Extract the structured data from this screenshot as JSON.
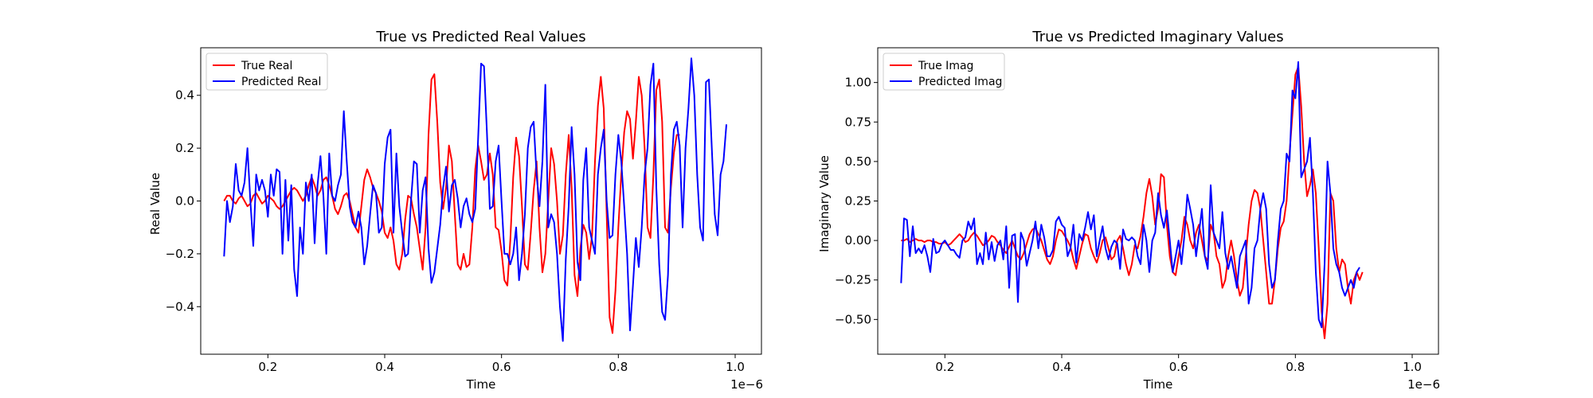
{
  "chart_data": [
    {
      "type": "line",
      "title": "True vs Predicted Real Values",
      "xlabel": "Time",
      "ylabel": "Real Value",
      "x_offset_label": "1e−6",
      "xlim": [
        0.085,
        1.045
      ],
      "ylim": [
        -0.58,
        0.58
      ],
      "xticks": [
        0.2,
        0.4,
        0.6,
        0.8,
        1.0
      ],
      "xtick_labels": [
        "0.2",
        "0.4",
        "0.6",
        "0.8",
        "1.0"
      ],
      "yticks": [
        -0.4,
        -0.2,
        0.0,
        0.2,
        0.4
      ],
      "ytick_labels": [
        "−0.4",
        "−0.2",
        "0.0",
        "0.2",
        "0.4"
      ],
      "grid": false,
      "legend_position": "upper-left",
      "x_start": 0.125,
      "x_step": 0.005,
      "series": [
        {
          "name": "True Real",
          "color": "#ff0000",
          "values": [
            0.0,
            0.02,
            0.02,
            0.0,
            -0.01,
            0.01,
            0.02,
            0.0,
            -0.02,
            -0.01,
            0.02,
            0.03,
            0.01,
            -0.01,
            0.0,
            0.02,
            0.01,
            0.0,
            -0.02,
            -0.03,
            -0.02,
            0.0,
            0.02,
            0.04,
            0.05,
            0.04,
            0.02,
            0.0,
            0.02,
            0.06,
            0.09,
            0.06,
            0.02,
            0.04,
            0.08,
            0.09,
            0.06,
            0.02,
            -0.03,
            -0.05,
            -0.02,
            0.02,
            0.03,
            0.0,
            -0.05,
            -0.1,
            -0.12,
            -0.02,
            0.08,
            0.12,
            0.09,
            0.05,
            0.03,
            0.0,
            -0.04,
            -0.12,
            -0.14,
            -0.1,
            -0.15,
            -0.24,
            -0.26,
            -0.2,
            -0.07,
            0.02,
            0.01,
            -0.05,
            -0.1,
            -0.18,
            -0.26,
            -0.1,
            0.25,
            0.46,
            0.48,
            0.3,
            0.07,
            -0.03,
            0.05,
            0.21,
            0.15,
            -0.05,
            -0.24,
            -0.26,
            -0.2,
            -0.25,
            -0.24,
            -0.1,
            0.12,
            0.21,
            0.15,
            0.08,
            0.1,
            0.18,
            0.1,
            -0.1,
            -0.11,
            -0.19,
            -0.3,
            -0.32,
            -0.15,
            0.09,
            0.24,
            0.17,
            -0.02,
            -0.24,
            -0.26,
            -0.12,
            0.04,
            0.15,
            -0.1,
            -0.27,
            -0.2,
            0.0,
            0.2,
            0.14,
            0.0,
            -0.2,
            -0.13,
            0.1,
            0.25,
            0.05,
            -0.28,
            -0.36,
            -0.18,
            -0.09,
            -0.12,
            -0.22,
            -0.13,
            0.15,
            0.36,
            0.47,
            0.35,
            -0.05,
            -0.44,
            -0.5,
            -0.34,
            -0.1,
            0.1,
            0.26,
            0.34,
            0.31,
            0.16,
            0.3,
            0.47,
            0.4,
            0.2,
            -0.1,
            -0.14,
            0.1,
            0.42,
            0.46,
            0.3,
            -0.1,
            -0.12,
            0.05,
            0.18,
            0.25,
            0.25
          ]
        },
        {
          "name": "Predicted Real",
          "color": "#0000ff",
          "values": [
            -0.21,
            0.0,
            -0.08,
            -0.02,
            0.14,
            0.04,
            0.02,
            0.07,
            0.2,
            0.0,
            -0.17,
            0.1,
            0.04,
            0.08,
            0.04,
            -0.06,
            0.1,
            0.02,
            0.12,
            0.11,
            -0.2,
            0.08,
            -0.15,
            0.06,
            -0.26,
            -0.36,
            -0.1,
            -0.2,
            0.07,
            0.0,
            0.1,
            -0.16,
            0.06,
            0.17,
            0.02,
            -0.2,
            0.18,
            0.02,
            0.0,
            0.06,
            0.1,
            0.34,
            0.15,
            -0.02,
            -0.08,
            -0.1,
            -0.04,
            -0.1,
            -0.24,
            -0.17,
            -0.05,
            0.06,
            0.03,
            -0.12,
            -0.1,
            0.14,
            0.24,
            0.27,
            -0.12,
            0.18,
            -0.02,
            -0.12,
            -0.21,
            -0.2,
            0.0,
            0.15,
            0.14,
            -0.12,
            0.04,
            0.09,
            -0.18,
            -0.31,
            -0.27,
            -0.18,
            -0.09,
            0.05,
            0.13,
            -0.04,
            0.06,
            0.08,
            0.01,
            -0.1,
            -0.02,
            0.01,
            -0.05,
            -0.08,
            -0.03,
            0.24,
            0.52,
            0.51,
            0.26,
            -0.03,
            -0.02,
            0.15,
            0.21,
            0.0,
            -0.2,
            -0.2,
            -0.24,
            -0.2,
            -0.1,
            -0.3,
            -0.2,
            -0.05,
            0.2,
            0.28,
            0.3,
            0.1,
            -0.02,
            0.15,
            0.44,
            -0.1,
            -0.05,
            -0.08,
            -0.2,
            -0.4,
            -0.53,
            -0.22,
            -0.02,
            0.28,
            0.1,
            -0.23,
            -0.3,
            0.08,
            0.2,
            -0.1,
            -0.15,
            -0.2,
            0.1,
            0.2,
            0.27,
            0.0,
            -0.14,
            -0.13,
            0.1,
            0.25,
            0.15,
            -0.02,
            -0.2,
            -0.49,
            -0.32,
            -0.14,
            -0.25,
            -0.1,
            0.1,
            0.2,
            0.44,
            0.52,
            0.05,
            -0.24,
            -0.42,
            -0.45,
            -0.28,
            0.1,
            0.27,
            0.3,
            0.21,
            -0.1,
            0.2,
            0.35,
            0.54,
            0.4,
            0.1,
            -0.1,
            -0.15,
            0.45,
            0.46,
            0.2,
            -0.05,
            -0.13,
            0.1,
            0.15,
            0.29
          ]
        }
      ]
    },
    {
      "type": "line",
      "title": "True vs Predicted Imaginary Values",
      "xlabel": "Time",
      "ylabel": "Imaginary Value",
      "x_offset_label": "1e−6",
      "xlim": [
        0.085,
        1.045
      ],
      "ylim": [
        -0.72,
        1.22
      ],
      "xticks": [
        0.2,
        0.4,
        0.6,
        0.8,
        1.0
      ],
      "xtick_labels": [
        "0.2",
        "0.4",
        "0.6",
        "0.8",
        "1.0"
      ],
      "yticks": [
        -0.5,
        -0.25,
        0.0,
        0.25,
        0.5,
        0.75,
        1.0
      ],
      "ytick_labels": [
        "−0.50",
        "−0.25",
        "0.00",
        "0.25",
        "0.50",
        "0.75",
        "1.00"
      ],
      "grid": false,
      "legend_position": "upper-left",
      "x_start": 0.125,
      "x_step": 0.005,
      "series": [
        {
          "name": "True Imag",
          "color": "#ff0000",
          "values": [
            0.0,
            0.0,
            0.01,
            -0.01,
            0.0,
            0.01,
            0.0,
            0.0,
            -0.01,
            0.0,
            0.0,
            -0.01,
            -0.01,
            -0.02,
            -0.02,
            -0.01,
            -0.03,
            -0.02,
            0.0,
            0.02,
            0.04,
            0.02,
            -0.01,
            0.0,
            0.03,
            0.05,
            0.03,
            0.0,
            -0.03,
            -0.02,
            0.0,
            0.03,
            0.02,
            -0.01,
            -0.03,
            -0.06,
            -0.08,
            -0.04,
            0.0,
            -0.05,
            -0.1,
            -0.12,
            -0.08,
            -0.02,
            0.04,
            0.07,
            0.08,
            0.04,
            0.0,
            -0.06,
            -0.12,
            -0.15,
            -0.1,
            0.0,
            0.07,
            0.06,
            0.03,
            0.0,
            -0.04,
            -0.12,
            -0.18,
            -0.1,
            -0.02,
            0.04,
            0.03,
            -0.05,
            -0.1,
            -0.14,
            -0.08,
            0.0,
            0.02,
            -0.05,
            -0.12,
            -0.1,
            0.0,
            0.03,
            -0.05,
            -0.15,
            -0.22,
            -0.15,
            -0.03,
            -0.05,
            0.03,
            0.15,
            0.3,
            0.39,
            0.28,
            0.1,
            0.2,
            0.42,
            0.4,
            0.1,
            -0.1,
            -0.2,
            -0.22,
            -0.1,
            0.0,
            0.15,
            0.1,
            0.0,
            -0.05,
            0.05,
            0.1,
            0.0,
            -0.1,
            -0.13,
            0.1,
            0.05,
            -0.1,
            -0.15,
            -0.3,
            -0.25,
            -0.1,
            0.0,
            -0.1,
            -0.25,
            -0.35,
            -0.3,
            -0.1,
            0.1,
            0.25,
            0.32,
            0.3,
            0.2,
            0.0,
            -0.2,
            -0.4,
            -0.4,
            -0.25,
            -0.05,
            0.08,
            0.12,
            0.25,
            0.55,
            0.8,
            1.05,
            1.1,
            0.85,
            0.5,
            0.28,
            0.35,
            0.45,
            0.3,
            -0.05,
            -0.45,
            -0.62,
            -0.4,
            0.3,
            0.25,
            -0.05,
            -0.2,
            -0.12,
            -0.15,
            -0.3,
            -0.4,
            -0.25,
            -0.2,
            -0.25,
            -0.2
          ]
        },
        {
          "name": "Predicted Imag",
          "color": "#0000ff",
          "values": [
            -0.27,
            0.14,
            0.13,
            -0.1,
            0.09,
            -0.08,
            -0.05,
            -0.08,
            -0.03,
            -0.1,
            -0.2,
            0.01,
            -0.08,
            -0.07,
            -0.02,
            0.0,
            -0.03,
            -0.06,
            -0.06,
            -0.09,
            -0.11,
            0.0,
            0.02,
            0.12,
            0.07,
            0.14,
            -0.15,
            -0.08,
            -0.15,
            0.05,
            -0.12,
            -0.01,
            -0.13,
            -0.03,
            0.0,
            -0.12,
            0.09,
            -0.3,
            0.03,
            0.04,
            -0.39,
            0.05,
            0.0,
            -0.16,
            -0.08,
            0.0,
            0.12,
            -0.05,
            0.1,
            0.02,
            -0.1,
            -0.1,
            -0.06,
            0.12,
            0.15,
            0.1,
            0.08,
            -0.1,
            -0.05,
            0.1,
            -0.14,
            0.04,
            0.0,
            0.08,
            0.18,
            0.07,
            0.16,
            -0.1,
            0.0,
            0.09,
            -0.05,
            -0.12,
            -0.04,
            0.0,
            -0.02,
            -0.18,
            0.07,
            0.01,
            0.0,
            0.02,
            0.0,
            -0.1,
            -0.15,
            0.1,
            0.0,
            -0.2,
            0.0,
            0.05,
            0.3,
            0.16,
            0.08,
            0.19,
            0.0,
            -0.2,
            -0.1,
            0.0,
            -0.15,
            0.03,
            0.29,
            0.2,
            0.1,
            -0.1,
            0.05,
            0.2,
            -0.1,
            -0.18,
            0.35,
            0.05,
            0.0,
            -0.05,
            0.18,
            -0.08,
            -0.18,
            -0.1,
            -0.2,
            -0.3,
            -0.1,
            -0.05,
            0.0,
            -0.4,
            -0.3,
            -0.05,
            0.0,
            0.2,
            0.3,
            0.2,
            -0.15,
            -0.3,
            -0.25,
            0.0,
            0.2,
            0.25,
            0.55,
            0.5,
            0.95,
            0.9,
            1.13,
            0.4,
            0.45,
            0.5,
            0.65,
            0.3,
            -0.2,
            -0.5,
            -0.55,
            -0.15,
            0.5,
            0.3,
            -0.05,
            -0.15,
            -0.2,
            -0.3,
            -0.35,
            -0.3,
            -0.25,
            -0.3,
            -0.2,
            -0.17
          ]
        }
      ]
    }
  ]
}
